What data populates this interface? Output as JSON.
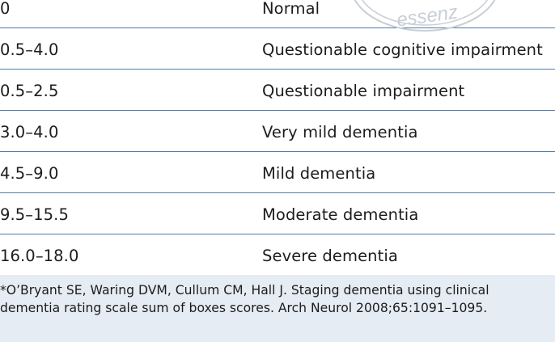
{
  "table": {
    "rows": [
      {
        "score": "0",
        "stage": "Normal"
      },
      {
        "score": "0.5–4.0",
        "stage": "Questionable cognitive impairment"
      },
      {
        "score": "0.5–2.5",
        "stage": "Questionable impairment"
      },
      {
        "score": "3.0–4.0",
        "stage": "Very mild dementia"
      },
      {
        "score": "4.5–9.0",
        "stage": "Mild dementia"
      },
      {
        "score": "9.5–15.5",
        "stage": "Moderate dementia"
      },
      {
        "score": "16.0–18.0",
        "stage": "Severe dementia"
      }
    ]
  },
  "footnote": {
    "text": "*O’Bryant SE, Waring DVM, Cullum CM, Hall J. Staging dementia using clinical dementia rating scale sum of boxes scores. Arch Neurol 2008;65:1091–1095."
  },
  "watermark": {
    "text": "essenz",
    "color": "#c9ced6"
  },
  "colors": {
    "rule": "#4f7ba4",
    "footnote_bg": "#e6ecf3",
    "text": "#1c1c1c"
  }
}
